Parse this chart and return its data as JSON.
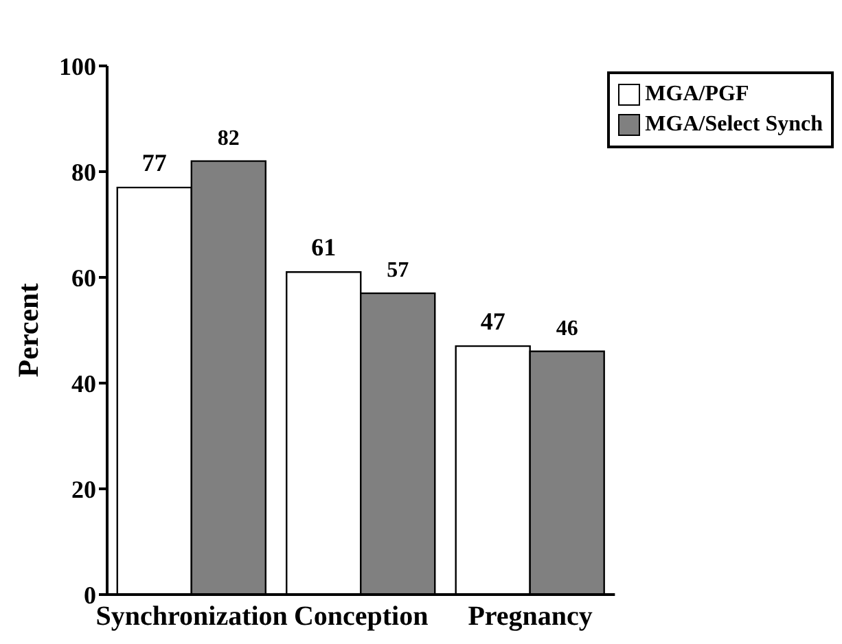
{
  "chart_data": {
    "type": "bar",
    "ylabel": "Percent",
    "categories": [
      "Synchronization",
      "Conception",
      "Pregnancy"
    ],
    "series": [
      {
        "name": "MGA/PGF",
        "color": "#ffffff",
        "values": [
          77,
          61,
          47
        ]
      },
      {
        "name": "MGA/Select Synch",
        "color": "#808080",
        "values": [
          82,
          57,
          46
        ]
      }
    ],
    "ylim": [
      0,
      100
    ],
    "yticks": [
      0,
      20,
      40,
      60,
      80,
      100
    ],
    "grid": false,
    "legend": "top right",
    "data_labels": true
  }
}
